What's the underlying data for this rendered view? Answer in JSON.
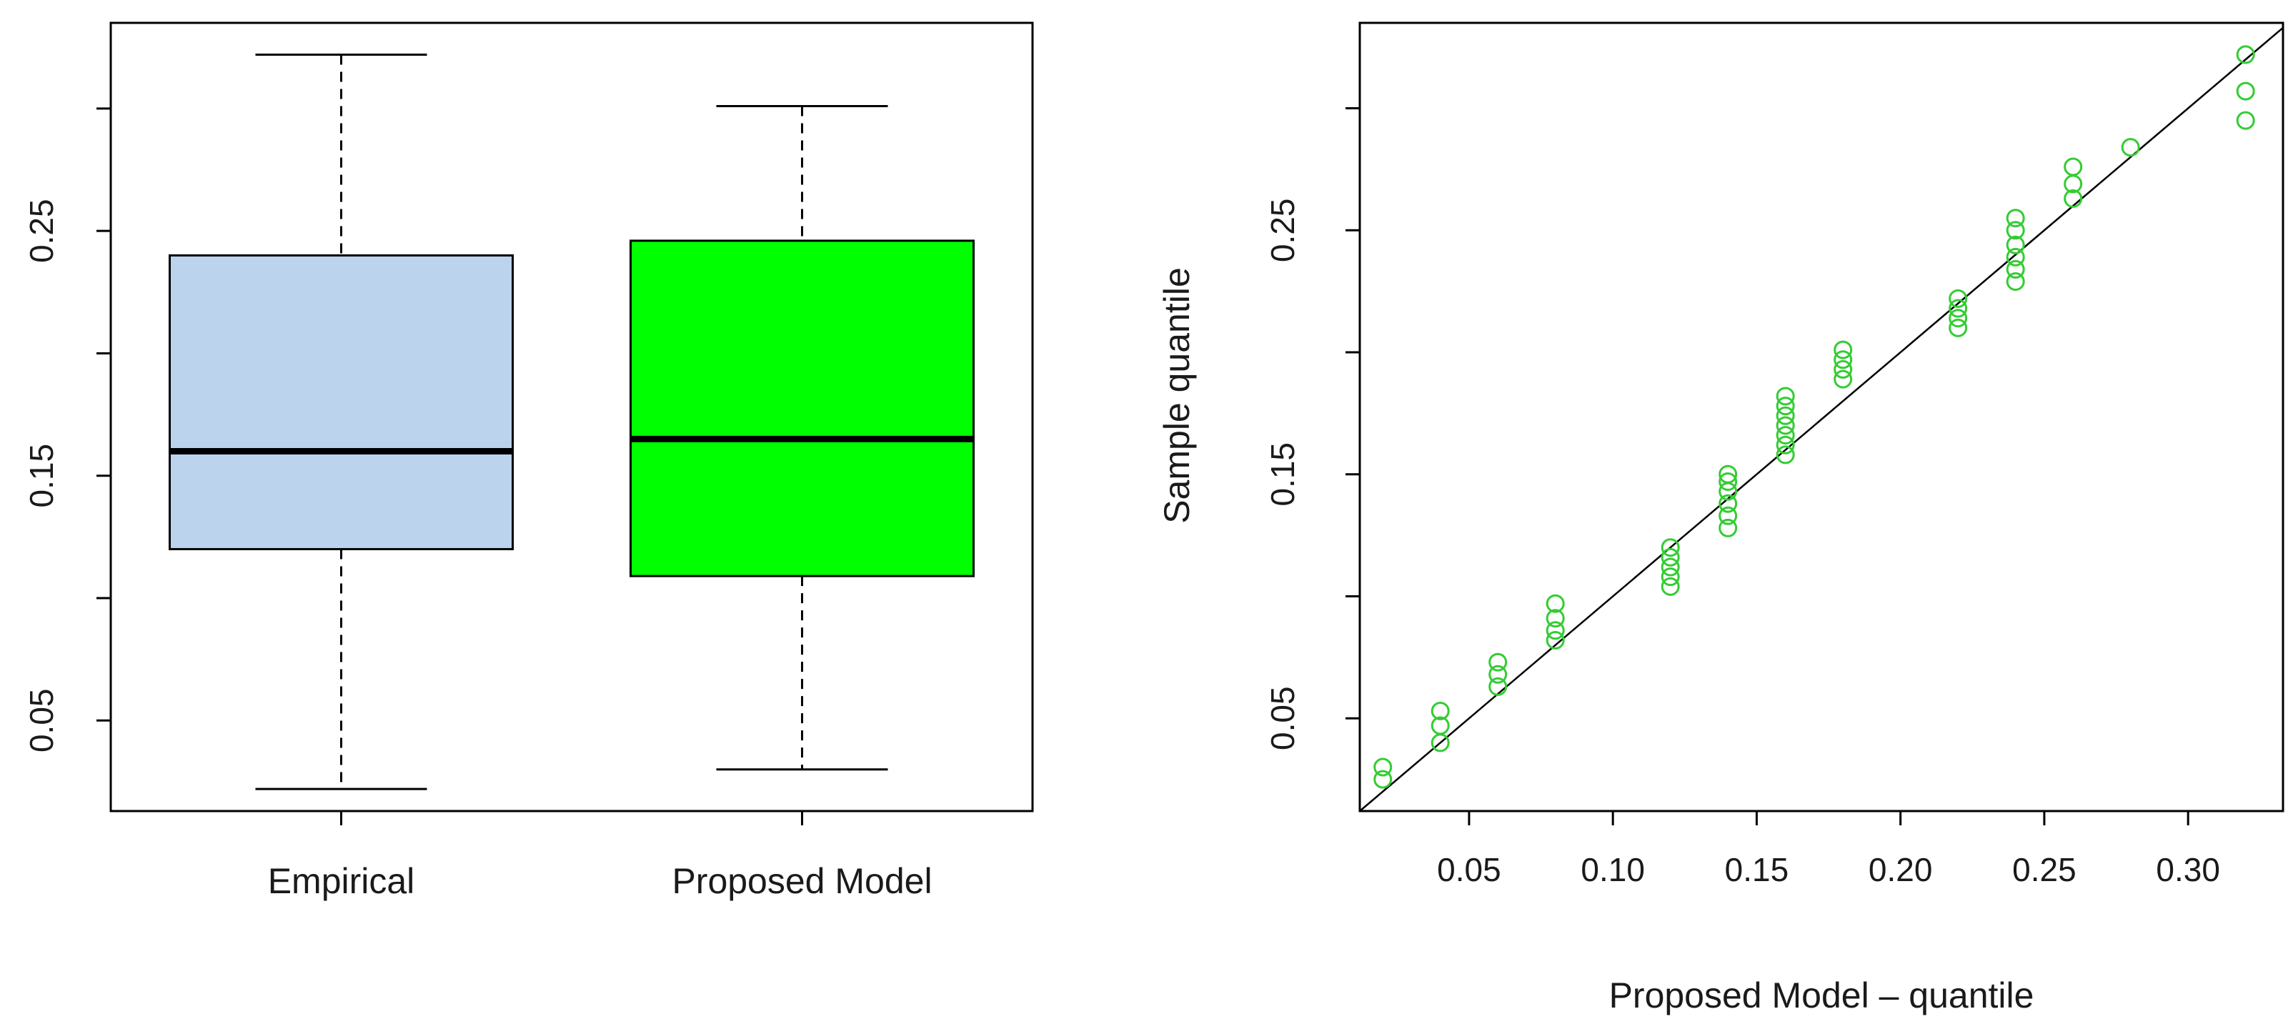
{
  "chart_data": [
    {
      "type": "boxplot",
      "title": "",
      "xlabel": "",
      "ylabel": "",
      "ylim": [
        0.013,
        0.335
      ],
      "y_ticks": [
        0.05,
        0.1,
        0.15,
        0.2,
        0.25,
        0.3
      ],
      "y_tick_labels": [
        "0.05",
        "",
        "0.15",
        "",
        "0.25",
        ""
      ],
      "categories": [
        "Empirical",
        "Proposed Model"
      ],
      "boxes": [
        {
          "name": "Empirical",
          "whisker_low": 0.022,
          "q1": 0.12,
          "median": 0.16,
          "q3": 0.24,
          "whisker_high": 0.322,
          "fill": "#bcd3ee"
        },
        {
          "name": "Proposed Model",
          "whisker_low": 0.03,
          "q1": 0.109,
          "median": 0.165,
          "q3": 0.246,
          "whisker_high": 0.301,
          "fill": "#00ff00"
        }
      ],
      "grid": false,
      "legend": "none"
    },
    {
      "type": "scatter",
      "title": "",
      "xlabel": "Proposed Model – quantile",
      "ylabel": "Sample quantile",
      "xlim": [
        0.012,
        0.333
      ],
      "ylim": [
        0.012,
        0.335
      ],
      "x_ticks": [
        0.05,
        0.1,
        0.15,
        0.2,
        0.25,
        0.3
      ],
      "x_tick_labels": [
        "0.05",
        "0.10",
        "0.15",
        "0.20",
        "0.25",
        "0.30"
      ],
      "y_ticks": [
        0.05,
        0.1,
        0.15,
        0.2,
        0.25,
        0.3
      ],
      "y_tick_labels": [
        "0.05",
        "",
        "0.15",
        "",
        "0.25",
        ""
      ],
      "marker_color": "#33cc33",
      "reference_line": {
        "x": [
          0.012,
          0.333
        ],
        "y": [
          0.012,
          0.333
        ],
        "color": "#000000"
      },
      "points": [
        [
          0.02,
          0.025
        ],
        [
          0.02,
          0.03
        ],
        [
          0.04,
          0.04
        ],
        [
          0.04,
          0.047
        ],
        [
          0.04,
          0.053
        ],
        [
          0.06,
          0.063
        ],
        [
          0.06,
          0.068
        ],
        [
          0.06,
          0.073
        ],
        [
          0.08,
          0.082
        ],
        [
          0.08,
          0.086
        ],
        [
          0.08,
          0.091
        ],
        [
          0.08,
          0.097
        ],
        [
          0.12,
          0.104
        ],
        [
          0.12,
          0.108
        ],
        [
          0.12,
          0.112
        ],
        [
          0.12,
          0.116
        ],
        [
          0.12,
          0.12
        ],
        [
          0.14,
          0.128
        ],
        [
          0.14,
          0.133
        ],
        [
          0.14,
          0.138
        ],
        [
          0.14,
          0.143
        ],
        [
          0.14,
          0.147
        ],
        [
          0.14,
          0.15
        ],
        [
          0.16,
          0.158
        ],
        [
          0.16,
          0.162
        ],
        [
          0.16,
          0.166
        ],
        [
          0.16,
          0.17
        ],
        [
          0.16,
          0.174
        ],
        [
          0.16,
          0.178
        ],
        [
          0.16,
          0.182
        ],
        [
          0.18,
          0.189
        ],
        [
          0.18,
          0.193
        ],
        [
          0.18,
          0.197
        ],
        [
          0.18,
          0.201
        ],
        [
          0.22,
          0.21
        ],
        [
          0.22,
          0.214
        ],
        [
          0.22,
          0.218
        ],
        [
          0.22,
          0.222
        ],
        [
          0.24,
          0.229
        ],
        [
          0.24,
          0.234
        ],
        [
          0.24,
          0.239
        ],
        [
          0.24,
          0.244
        ],
        [
          0.24,
          0.25
        ],
        [
          0.24,
          0.255
        ],
        [
          0.26,
          0.263
        ],
        [
          0.26,
          0.269
        ],
        [
          0.26,
          0.276
        ],
        [
          0.28,
          0.284
        ],
        [
          0.32,
          0.295
        ],
        [
          0.32,
          0.307
        ],
        [
          0.32,
          0.322
        ]
      ],
      "grid": false,
      "legend": "none"
    }
  ]
}
